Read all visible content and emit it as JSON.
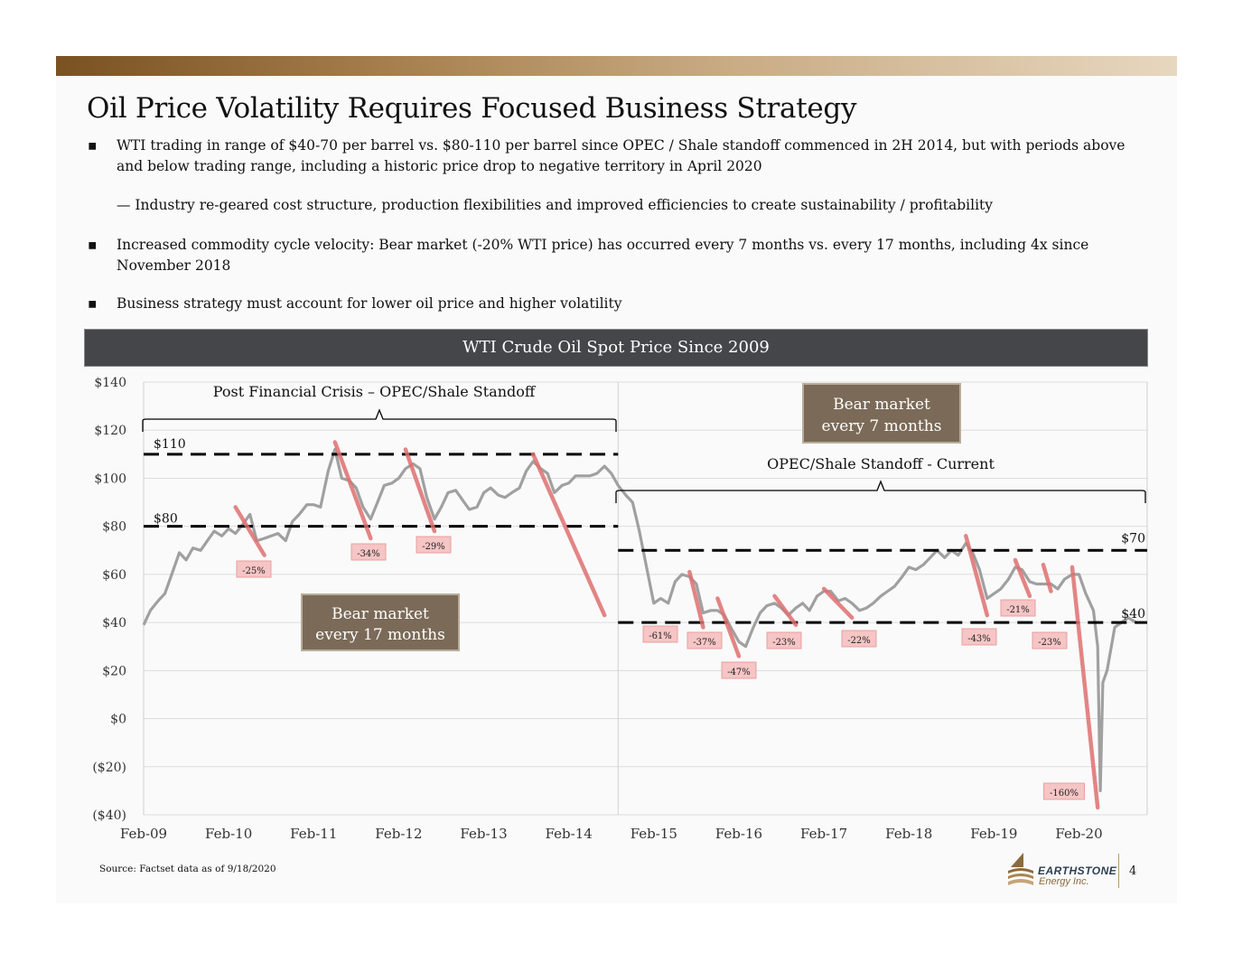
{
  "title": "Oil Price Volatility Requires Focused Business Strategy",
  "bullets": [
    {
      "marker": "▪",
      "text": "WTI trading in range of $40-70 per barrel vs. $80-110 per barrel since OPEC / Shale standoff commenced in 2H 2014, but with periods above and below trading range, including a historic price drop to negative territory in April 2020"
    },
    {
      "marker": "",
      "text": "— Industry re-geared cost structure, production flexibilities and improved efficiencies to create sustainability / profitability"
    },
    {
      "marker": "▪",
      "text": "Increased commodity cycle velocity: Bear market (-20% WTI price) has occurred every 7 months vs. every 17 months, including 4x since November 2018"
    },
    {
      "marker": "▪",
      "text": "Business strategy must account for lower oil price and higher volatility"
    }
  ],
  "chart_header": "WTI Crude Oil Spot Price Since 2009",
  "source": "Source:   Factset data as of 9/18/2020",
  "logo": {
    "line1": "EARTHSTONE",
    "line2": "Energy Inc."
  },
  "page_number": "4",
  "colors": {
    "bar_dark": "#7a5221",
    "header_bg": "#454649",
    "box_brown": "#7a6a57",
    "line_gray": "#a0a0a0",
    "drawdown_red": "#e07070",
    "label_pink": "#f6c5c5"
  },
  "chart_data": {
    "type": "line",
    "ylim": [
      -40,
      140
    ],
    "y_ticks": [
      140,
      120,
      100,
      80,
      60,
      40,
      20,
      0,
      -20,
      -40
    ],
    "y_tick_labels": [
      "$140",
      "$120",
      "$100",
      "$80",
      "$60",
      "$40",
      "$20",
      "$0",
      "($20)",
      "($40)"
    ],
    "x_tick_labels": [
      "Feb-09",
      "Feb-10",
      "Feb-11",
      "Feb-12",
      "Feb-13",
      "Feb-14",
      "Feb-15",
      "Feb-16",
      "Feb-17",
      "Feb-18",
      "Feb-19",
      "Feb-20"
    ],
    "grid": true,
    "series": [
      {
        "x": [
          2009.0,
          2009.08,
          2009.17,
          2009.25,
          2009.33,
          2009.42,
          2009.5,
          2009.58,
          2009.67,
          2009.75,
          2009.83,
          2009.92,
          2010.0,
          2010.08,
          2010.17,
          2010.25,
          2010.33,
          2010.42,
          2010.5,
          2010.58,
          2010.67,
          2010.75,
          2010.83,
          2010.92,
          2011.0,
          2011.08,
          2011.17,
          2011.25,
          2011.33,
          2011.42,
          2011.5,
          2011.58,
          2011.67,
          2011.75,
          2011.83,
          2011.92,
          2012.0,
          2012.08,
          2012.17,
          2012.25,
          2012.33,
          2012.42,
          2012.5,
          2012.58,
          2012.67,
          2012.75,
          2012.83,
          2012.92,
          2013.0,
          2013.08,
          2013.17,
          2013.25,
          2013.33,
          2013.42,
          2013.5,
          2013.58,
          2013.67,
          2013.75,
          2013.83,
          2013.92,
          2014.0,
          2014.08,
          2014.17,
          2014.25,
          2014.33,
          2014.42,
          2014.5,
          2014.58,
          2014.67,
          2014.75,
          2014.83,
          2014.92,
          2015.0,
          2015.08,
          2015.17,
          2015.25,
          2015.33,
          2015.42,
          2015.5,
          2015.58,
          2015.67,
          2015.75,
          2015.83,
          2015.92,
          2016.0,
          2016.08,
          2016.17,
          2016.25,
          2016.33,
          2016.42,
          2016.5,
          2016.58,
          2016.67,
          2016.75,
          2016.83,
          2016.92,
          2017.0,
          2017.08,
          2017.17,
          2017.25,
          2017.33,
          2017.42,
          2017.5,
          2017.58,
          2017.67,
          2017.75,
          2017.83,
          2017.92,
          2018.0,
          2018.08,
          2018.17,
          2018.25,
          2018.33,
          2018.42,
          2018.5,
          2018.58,
          2018.67,
          2018.75,
          2018.83,
          2018.92,
          2019.0,
          2019.08,
          2019.17,
          2019.25,
          2019.33,
          2019.42,
          2019.5,
          2019.58,
          2019.67,
          2019.75,
          2019.83,
          2019.92,
          2020.0,
          2020.08,
          2020.17,
          2020.22,
          2020.25,
          2020.28,
          2020.33,
          2020.42,
          2020.5,
          2020.58,
          2020.67
        ],
        "y": [
          39,
          45,
          49,
          52,
          60,
          69,
          66,
          71,
          70,
          74,
          78,
          76,
          79,
          77,
          81,
          85,
          74,
          75,
          76,
          77,
          74,
          82,
          85,
          89,
          89,
          88,
          103,
          112,
          100,
          99,
          96,
          88,
          83,
          90,
          97,
          98,
          100,
          104,
          106,
          104,
          92,
          83,
          88,
          94,
          95,
          91,
          87,
          88,
          94,
          96,
          93,
          92,
          94,
          96,
          103,
          107,
          104,
          102,
          94,
          97,
          98,
          101,
          101,
          101,
          102,
          105,
          102,
          97,
          93,
          90,
          78,
          62,
          48,
          50,
          48,
          57,
          60,
          59,
          56,
          44,
          45,
          45,
          43,
          37,
          32,
          30,
          38,
          44,
          47,
          48,
          46,
          43,
          46,
          48,
          45,
          51,
          53,
          53,
          49,
          50,
          48,
          45,
          46,
          48,
          51,
          53,
          55,
          59,
          63,
          62,
          64,
          67,
          70,
          67,
          70,
          68,
          73,
          69,
          62,
          50,
          52,
          54,
          58,
          63,
          62,
          57,
          56,
          56,
          56,
          54,
          58,
          60,
          60,
          52,
          45,
          30,
          -30,
          15,
          20,
          38,
          40,
          42,
          40
        ]
      }
    ],
    "drawdown_markers": [
      {
        "label": "-25%",
        "x_start": 2010.08,
        "y_start": 88,
        "x_end": 2010.42,
        "y_end": 68
      },
      {
        "label": "-34%",
        "x_start": 2011.25,
        "y_start": 115,
        "x_end": 2011.67,
        "y_end": 75
      },
      {
        "label": "-29%",
        "x_start": 2012.08,
        "y_start": 112,
        "x_end": 2012.42,
        "y_end": 78
      },
      {
        "label": "-61%",
        "x_start": 2013.58,
        "y_start": 110,
        "x_end": 2014.42,
        "y_end": 43
      },
      {
        "label": "-37%",
        "x_start": 2015.42,
        "y_start": 61,
        "x_end": 2015.58,
        "y_end": 38
      },
      {
        "label": "-47%",
        "x_start": 2015.75,
        "y_start": 50,
        "x_end": 2016.0,
        "y_end": 26
      },
      {
        "label": "-23%",
        "x_start": 2016.42,
        "y_start": 51,
        "x_end": 2016.67,
        "y_end": 39
      },
      {
        "label": "-22%",
        "x_start": 2017.0,
        "y_start": 54,
        "x_end": 2017.33,
        "y_end": 42
      },
      {
        "label": "-43%",
        "x_start": 2018.67,
        "y_start": 76,
        "x_end": 2018.92,
        "y_end": 43
      },
      {
        "label": "-21%",
        "x_start": 2019.25,
        "y_start": 66,
        "x_end": 2019.42,
        "y_end": 51
      },
      {
        "label": "-23%",
        "x_start": 2019.58,
        "y_start": 64,
        "x_end": 2019.67,
        "y_end": 53
      },
      {
        "label": "-160%",
        "x_start": 2019.92,
        "y_start": 63,
        "x_end": 2020.22,
        "y_end": -37
      }
    ],
    "reference_lines": [
      {
        "label": "$110",
        "y": 110,
        "x_start": 2009.0,
        "x_end": 2014.58
      },
      {
        "label": "$80",
        "y": 80,
        "x_start": 2009.0,
        "x_end": 2014.58
      },
      {
        "label": "$70",
        "y": 70,
        "x_start": 2014.58,
        "x_end": 2020.9
      },
      {
        "label": "$40",
        "y": 40,
        "x_start": 2014.58,
        "x_end": 2020.9
      }
    ],
    "annotations": {
      "period1": "Post Financial Crisis – OPEC/Shale Standoff",
      "period2": "OPEC/Shale Standoff - Current",
      "box1": [
        "Bear market",
        "every 17 months"
      ],
      "box2": [
        "Bear market",
        "every 7 months"
      ]
    }
  }
}
